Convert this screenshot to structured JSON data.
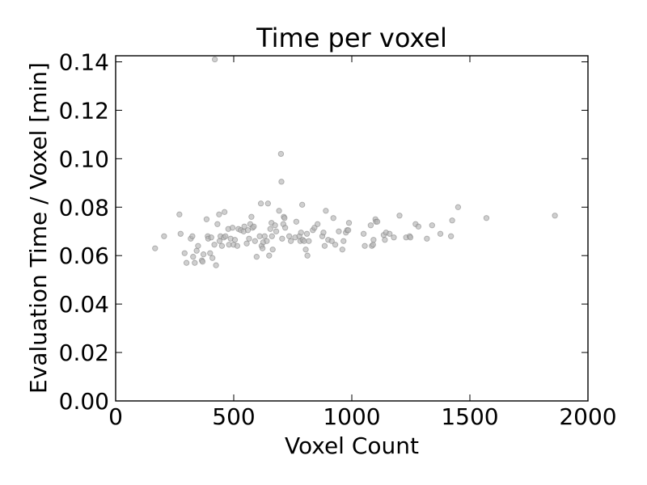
{
  "chart_data": {
    "type": "scatter",
    "title": "Time per voxel",
    "xlabel": "Voxel Count",
    "ylabel": "Evaluation Time / Voxel [min]",
    "xlim": [
      0,
      2000
    ],
    "ylim": [
      0,
      0.1425
    ],
    "xticks": [
      "0",
      "500",
      "1000",
      "1500",
      "2000"
    ],
    "yticks": [
      "0.00",
      "0.02",
      "0.04",
      "0.06",
      "0.08",
      "0.10",
      "0.12",
      "0.14"
    ],
    "grid": false,
    "legend": "none",
    "marker_fill": "#b5b5b5",
    "marker_edge": "#7a7a7a",
    "points": [
      [
        167,
        0.063
      ],
      [
        205,
        0.068
      ],
      [
        270,
        0.077
      ],
      [
        275,
        0.069
      ],
      [
        292,
        0.061
      ],
      [
        300,
        0.057
      ],
      [
        318,
        0.067
      ],
      [
        325,
        0.068
      ],
      [
        328,
        0.0595
      ],
      [
        335,
        0.057
      ],
      [
        343,
        0.062
      ],
      [
        349,
        0.064
      ],
      [
        365,
        0.058
      ],
      [
        368,
        0.0575
      ],
      [
        372,
        0.0605
      ],
      [
        385,
        0.075
      ],
      [
        390,
        0.068
      ],
      [
        392,
        0.067
      ],
      [
        400,
        0.061
      ],
      [
        405,
        0.0675
      ],
      [
        410,
        0.059
      ],
      [
        418,
        0.0645
      ],
      [
        420,
        0.141
      ],
      [
        425,
        0.056
      ],
      [
        431,
        0.073
      ],
      [
        438,
        0.077
      ],
      [
        440,
        0.066
      ],
      [
        444,
        0.068
      ],
      [
        450,
        0.064
      ],
      [
        458,
        0.0675
      ],
      [
        461,
        0.078
      ],
      [
        465,
        0.068
      ],
      [
        477,
        0.071
      ],
      [
        480,
        0.0645
      ],
      [
        487,
        0.067
      ],
      [
        495,
        0.0715
      ],
      [
        499,
        0.0645
      ],
      [
        505,
        0.0665
      ],
      [
        515,
        0.064
      ],
      [
        520,
        0.071
      ],
      [
        530,
        0.0705
      ],
      [
        542,
        0.07
      ],
      [
        545,
        0.072
      ],
      [
        555,
        0.065
      ],
      [
        560,
        0.0705
      ],
      [
        565,
        0.067
      ],
      [
        570,
        0.073
      ],
      [
        575,
        0.076
      ],
      [
        580,
        0.0715
      ],
      [
        585,
        0.072
      ],
      [
        590,
        0.066
      ],
      [
        597,
        0.0595
      ],
      [
        610,
        0.068
      ],
      [
        615,
        0.0815
      ],
      [
        618,
        0.064
      ],
      [
        622,
        0.063
      ],
      [
        625,
        0.0655
      ],
      [
        631,
        0.068
      ],
      [
        640,
        0.066
      ],
      [
        645,
        0.0815
      ],
      [
        650,
        0.06
      ],
      [
        655,
        0.071
      ],
      [
        660,
        0.0735
      ],
      [
        662,
        0.068
      ],
      [
        665,
        0.0625
      ],
      [
        675,
        0.0725
      ],
      [
        680,
        0.07
      ],
      [
        692,
        0.0785
      ],
      [
        700,
        0.102
      ],
      [
        702,
        0.0905
      ],
      [
        705,
        0.067
      ],
      [
        710,
        0.073
      ],
      [
        712,
        0.076
      ],
      [
        715,
        0.0755
      ],
      [
        718,
        0.0715
      ],
      [
        735,
        0.068
      ],
      [
        742,
        0.066
      ],
      [
        760,
        0.0675
      ],
      [
        765,
        0.074
      ],
      [
        778,
        0.068
      ],
      [
        782,
        0.066
      ],
      [
        785,
        0.0695
      ],
      [
        790,
        0.081
      ],
      [
        792,
        0.0665
      ],
      [
        798,
        0.066
      ],
      [
        805,
        0.0625
      ],
      [
        810,
        0.069
      ],
      [
        812,
        0.06
      ],
      [
        818,
        0.066
      ],
      [
        835,
        0.0705
      ],
      [
        842,
        0.0715
      ],
      [
        855,
        0.073
      ],
      [
        875,
        0.068
      ],
      [
        880,
        0.0695
      ],
      [
        885,
        0.064
      ],
      [
        890,
        0.0785
      ],
      [
        900,
        0.0665
      ],
      [
        915,
        0.066
      ],
      [
        922,
        0.0755
      ],
      [
        930,
        0.0645
      ],
      [
        945,
        0.07
      ],
      [
        960,
        0.0625
      ],
      [
        965,
        0.066
      ],
      [
        975,
        0.0695
      ],
      [
        980,
        0.0705
      ],
      [
        985,
        0.0705
      ],
      [
        988,
        0.0735
      ],
      [
        1050,
        0.069
      ],
      [
        1055,
        0.064
      ],
      [
        1080,
        0.0725
      ],
      [
        1085,
        0.064
      ],
      [
        1090,
        0.0645
      ],
      [
        1092,
        0.0665
      ],
      [
        1100,
        0.075
      ],
      [
        1102,
        0.074
      ],
      [
        1108,
        0.074
      ],
      [
        1135,
        0.0685
      ],
      [
        1140,
        0.0665
      ],
      [
        1145,
        0.0695
      ],
      [
        1160,
        0.069
      ],
      [
        1178,
        0.0675
      ],
      [
        1202,
        0.0765
      ],
      [
        1230,
        0.0675
      ],
      [
        1245,
        0.068
      ],
      [
        1248,
        0.0675
      ],
      [
        1270,
        0.073
      ],
      [
        1282,
        0.072
      ],
      [
        1318,
        0.067
      ],
      [
        1340,
        0.0725
      ],
      [
        1375,
        0.069
      ],
      [
        1420,
        0.068
      ],
      [
        1425,
        0.0745
      ],
      [
        1450,
        0.08
      ],
      [
        1570,
        0.0755
      ],
      [
        1860,
        0.0765
      ]
    ]
  }
}
